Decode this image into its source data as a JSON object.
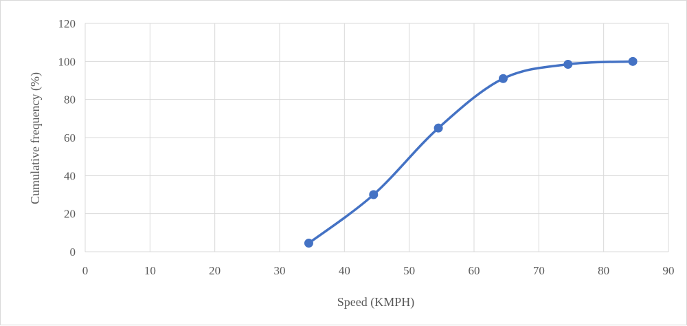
{
  "chart_data": {
    "type": "line",
    "title": "",
    "xlabel": "Speed (KMPH)",
    "ylabel": "Cumulative frequency (%)",
    "xlim": [
      0,
      90
    ],
    "ylim": [
      0,
      120
    ],
    "x_ticks": [
      "0",
      "10",
      "20",
      "30",
      "40",
      "50",
      "60",
      "70",
      "80",
      "90"
    ],
    "y_ticks": [
      "0",
      "20",
      "40",
      "60",
      "80",
      "100",
      "120"
    ],
    "grid": true,
    "smoothed": true,
    "series": [
      {
        "color": "#4472c4",
        "x": [
          34.5,
          44.5,
          54.5,
          64.5,
          74.5,
          84.5
        ],
        "y": [
          4.5,
          30,
          65,
          91,
          98.5,
          100
        ]
      }
    ]
  }
}
